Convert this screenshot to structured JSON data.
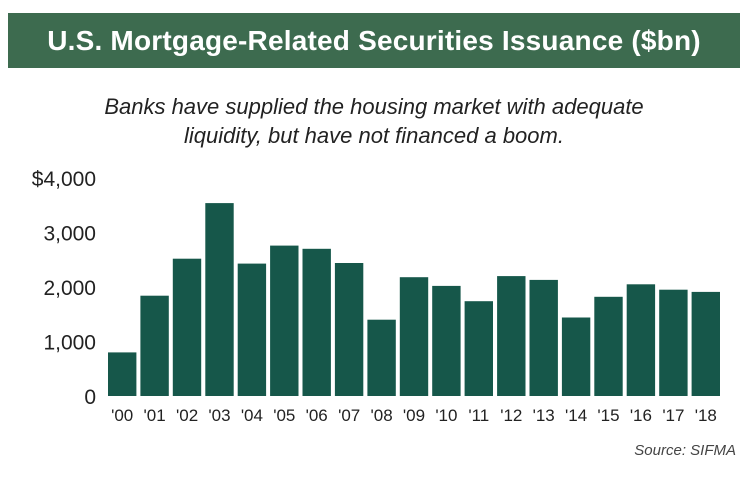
{
  "title": "U.S. Mortgage-Related Securities Issuance ($bn)",
  "subtitle_line1": "Banks have supplied the housing market with adequate",
  "subtitle_line2": "liquidity, but have not financed a boom.",
  "source": "Source: SIFMA",
  "colors": {
    "title_bar": "#3d6b4f",
    "bar": "#16574a"
  },
  "chart_data": {
    "type": "bar",
    "categories": [
      "'00",
      "'01",
      "'02",
      "'03",
      "'04",
      "'05",
      "'06",
      "'07",
      "'08",
      "'09",
      "'10",
      "'11",
      "'12",
      "'13",
      "'14",
      "'15",
      "'16",
      "'17",
      "'18"
    ],
    "values": [
      800,
      1840,
      2520,
      3540,
      2430,
      2760,
      2700,
      2440,
      1400,
      2180,
      2020,
      1740,
      2200,
      2130,
      1440,
      1820,
      2050,
      1950,
      1910
    ],
    "ylim": [
      0,
      4000
    ],
    "yticks": [
      0,
      1000,
      2000,
      3000,
      4000
    ],
    "ytick_labels": [
      "0",
      "1,000",
      "2,000",
      "3,000",
      "$4,000"
    ],
    "xlabel": "",
    "ylabel": "",
    "grid": false,
    "legend": "none"
  }
}
